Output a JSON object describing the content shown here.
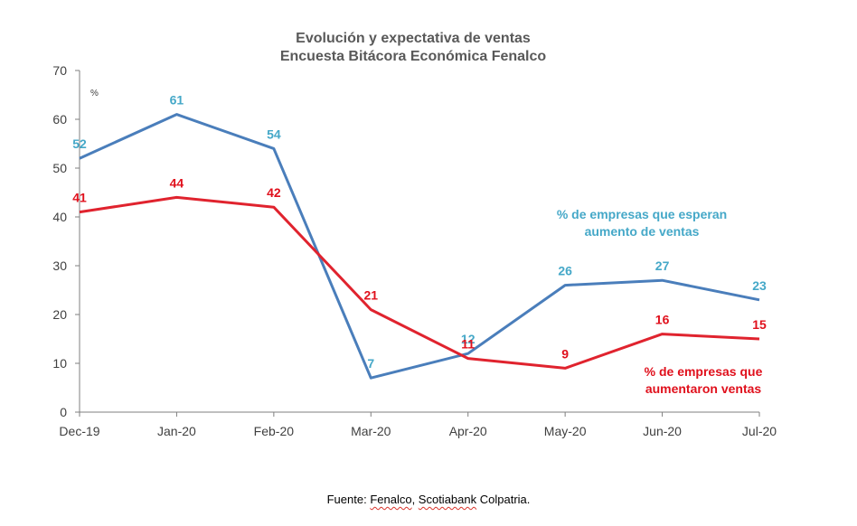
{
  "chart_data": {
    "type": "line",
    "title": "Evolución y expectativa de ventas",
    "subtitle": "Encuesta Bitácora Económica Fenalco",
    "unit_label": "%",
    "categories": [
      "Dec-19",
      "Jan-20",
      "Feb-20",
      "Mar-20",
      "Apr-20",
      "May-20",
      "Jun-20",
      "Jul-20"
    ],
    "ylim": [
      0,
      70
    ],
    "yticks": [
      0,
      10,
      20,
      30,
      40,
      50,
      60,
      70
    ],
    "grid": false,
    "series": [
      {
        "name": "% de empresas que esperan aumento de ventas",
        "legend_lines": [
          "% de empresas que esperan",
          "aumento de ventas"
        ],
        "values": [
          52,
          61,
          54,
          7,
          12,
          26,
          27,
          23
        ],
        "line_color": "#4a7ebb",
        "label_color": "#45a8c8"
      },
      {
        "name": "% de empresas que aumentaron ventas",
        "legend_lines": [
          "% de empresas que",
          "aumentaron ventas"
        ],
        "values": [
          41,
          44,
          42,
          21,
          11,
          9,
          16,
          15
        ],
        "line_color": "#e0232e",
        "label_color": "#e0101c"
      }
    ]
  },
  "source": {
    "prefix": "Fuente: ",
    "part1": "Fenalco",
    "sep": ", ",
    "part2": "Scotiabank",
    "suffix": " Colpatria."
  }
}
